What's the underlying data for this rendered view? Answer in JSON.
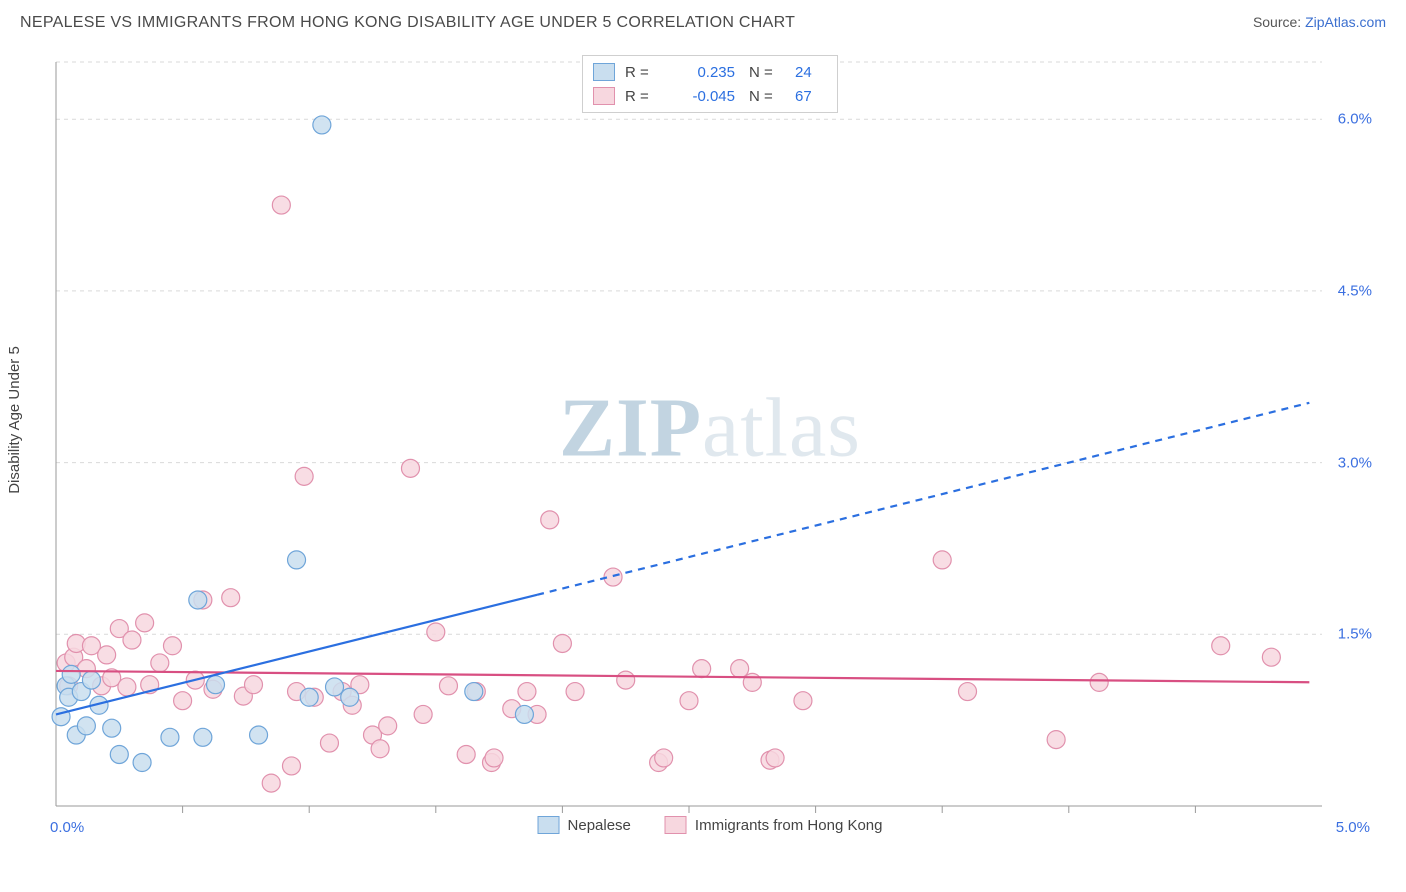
{
  "title": "NEPALESE VS IMMIGRANTS FROM HONG KONG DISABILITY AGE UNDER 5 CORRELATION CHART",
  "source": {
    "label": "Source:",
    "site": "ZipAtlas.com"
  },
  "ylabel": "Disability Age Under 5",
  "watermark": {
    "part1": "ZIP",
    "part2": "atlas"
  },
  "chart": {
    "type": "scatter",
    "background_color": "#ffffff",
    "grid_color": "#d9d9d9",
    "axis_color": "#9a9a9a",
    "xlim": [
      0.0,
      5.0
    ],
    "ylim": [
      0.0,
      6.5
    ],
    "x_label_origin": "0.0%",
    "x_label_max": "5.0%",
    "y_ticks": [
      {
        "v": 1.5,
        "label": "1.5%"
      },
      {
        "v": 3.0,
        "label": "3.0%"
      },
      {
        "v": 4.5,
        "label": "4.5%"
      },
      {
        "v": 6.0,
        "label": "6.0%"
      }
    ],
    "x_minor_ticks": [
      0.5,
      1.0,
      1.5,
      2.0,
      2.5,
      3.0,
      3.5,
      4.0,
      4.5
    ],
    "marker_radius": 9,
    "marker_stroke_width": 1.2,
    "series": [
      {
        "key": "nepalese",
        "name": "Nepalese",
        "fill": "#c9deef",
        "stroke": "#6fa5d9",
        "r_value": "0.235",
        "n_value": "24",
        "trend": {
          "color": "#2b6fe0",
          "width": 2.2,
          "solid_from_x": 0.0,
          "solid_to_x": 1.9,
          "dash_to_x": 4.95,
          "y_intercept": 0.8,
          "slope": 0.55
        },
        "points": [
          [
            0.02,
            0.78
          ],
          [
            0.04,
            1.05
          ],
          [
            0.05,
            0.95
          ],
          [
            0.06,
            1.15
          ],
          [
            0.08,
            0.62
          ],
          [
            0.1,
            1.0
          ],
          [
            0.12,
            0.7
          ],
          [
            0.14,
            1.1
          ],
          [
            0.17,
            0.88
          ],
          [
            0.22,
            0.68
          ],
          [
            0.25,
            0.45
          ],
          [
            0.34,
            0.38
          ],
          [
            0.45,
            0.6
          ],
          [
            0.56,
            1.8
          ],
          [
            0.58,
            0.6
          ],
          [
            0.63,
            1.06
          ],
          [
            0.8,
            0.62
          ],
          [
            0.95,
            2.15
          ],
          [
            1.0,
            0.95
          ],
          [
            1.05,
            5.95
          ],
          [
            1.1,
            1.04
          ],
          [
            1.16,
            0.95
          ],
          [
            1.65,
            1.0
          ],
          [
            1.85,
            0.8
          ]
        ]
      },
      {
        "key": "hk",
        "name": "Immigrants from Hong Kong",
        "fill": "#f7d7df",
        "stroke": "#e191ad",
        "r_value": "-0.045",
        "n_value": "67",
        "trend": {
          "color": "#d84f82",
          "width": 2.2,
          "solid_from_x": 0.0,
          "solid_to_x": 4.95,
          "dash_to_x": 4.95,
          "y_intercept": 1.18,
          "slope": -0.02
        },
        "points": [
          [
            0.04,
            1.25
          ],
          [
            0.05,
            1.05
          ],
          [
            0.07,
            1.3
          ],
          [
            0.08,
            1.42
          ],
          [
            0.12,
            1.2
          ],
          [
            0.14,
            1.4
          ],
          [
            0.18,
            1.05
          ],
          [
            0.2,
            1.32
          ],
          [
            0.22,
            1.12
          ],
          [
            0.25,
            1.55
          ],
          [
            0.28,
            1.04
          ],
          [
            0.3,
            1.45
          ],
          [
            0.35,
            1.6
          ],
          [
            0.37,
            1.06
          ],
          [
            0.41,
            1.25
          ],
          [
            0.46,
            1.4
          ],
          [
            0.5,
            0.92
          ],
          [
            0.55,
            1.1
          ],
          [
            0.58,
            1.8
          ],
          [
            0.62,
            1.02
          ],
          [
            0.69,
            1.82
          ],
          [
            0.74,
            0.96
          ],
          [
            0.78,
            1.06
          ],
          [
            0.85,
            0.2
          ],
          [
            0.89,
            5.25
          ],
          [
            0.93,
            0.35
          ],
          [
            0.95,
            1.0
          ],
          [
            0.98,
            2.88
          ],
          [
            1.02,
            0.95
          ],
          [
            1.08,
            0.55
          ],
          [
            1.13,
            1.0
          ],
          [
            1.17,
            0.88
          ],
          [
            1.2,
            1.06
          ],
          [
            1.25,
            0.62
          ],
          [
            1.28,
            0.5
          ],
          [
            1.31,
            0.7
          ],
          [
            1.4,
            2.95
          ],
          [
            1.45,
            0.8
          ],
          [
            1.5,
            1.52
          ],
          [
            1.55,
            1.05
          ],
          [
            1.62,
            0.45
          ],
          [
            1.66,
            1.0
          ],
          [
            1.72,
            0.38
          ],
          [
            1.73,
            0.42
          ],
          [
            1.8,
            0.85
          ],
          [
            1.86,
            1.0
          ],
          [
            1.9,
            0.8
          ],
          [
            1.95,
            2.5
          ],
          [
            2.0,
            1.42
          ],
          [
            2.05,
            1.0
          ],
          [
            2.2,
            2.0
          ],
          [
            2.25,
            1.1
          ],
          [
            2.38,
            0.38
          ],
          [
            2.4,
            0.42
          ],
          [
            2.5,
            0.92
          ],
          [
            2.55,
            1.2
          ],
          [
            2.7,
            1.2
          ],
          [
            2.75,
            1.08
          ],
          [
            2.82,
            0.4
          ],
          [
            2.84,
            0.42
          ],
          [
            2.95,
            0.92
          ],
          [
            3.5,
            2.15
          ],
          [
            3.6,
            1.0
          ],
          [
            3.95,
            0.58
          ],
          [
            4.12,
            1.08
          ],
          [
            4.6,
            1.4
          ],
          [
            4.8,
            1.3
          ]
        ]
      }
    ]
  },
  "legend_top": {
    "r_label": "R =",
    "n_label": "N ="
  }
}
